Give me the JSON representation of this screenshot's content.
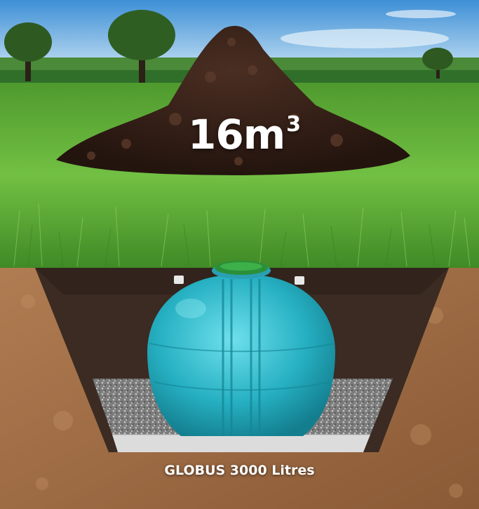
{
  "soil_pile": {
    "volume": "16m",
    "unit_exponent": "3"
  },
  "tank": {
    "caption": "GLOBUS 3000 Litres",
    "color": "#2ab3c3",
    "lid_color": "#2a8f3a"
  },
  "colors": {
    "sky": "#6fb3e0",
    "grass": "#5fb23a",
    "soil": "#9a6a45",
    "trench": "#3a2a22",
    "gravel": "#8d8d8d",
    "concrete": "#d9d9d9"
  }
}
